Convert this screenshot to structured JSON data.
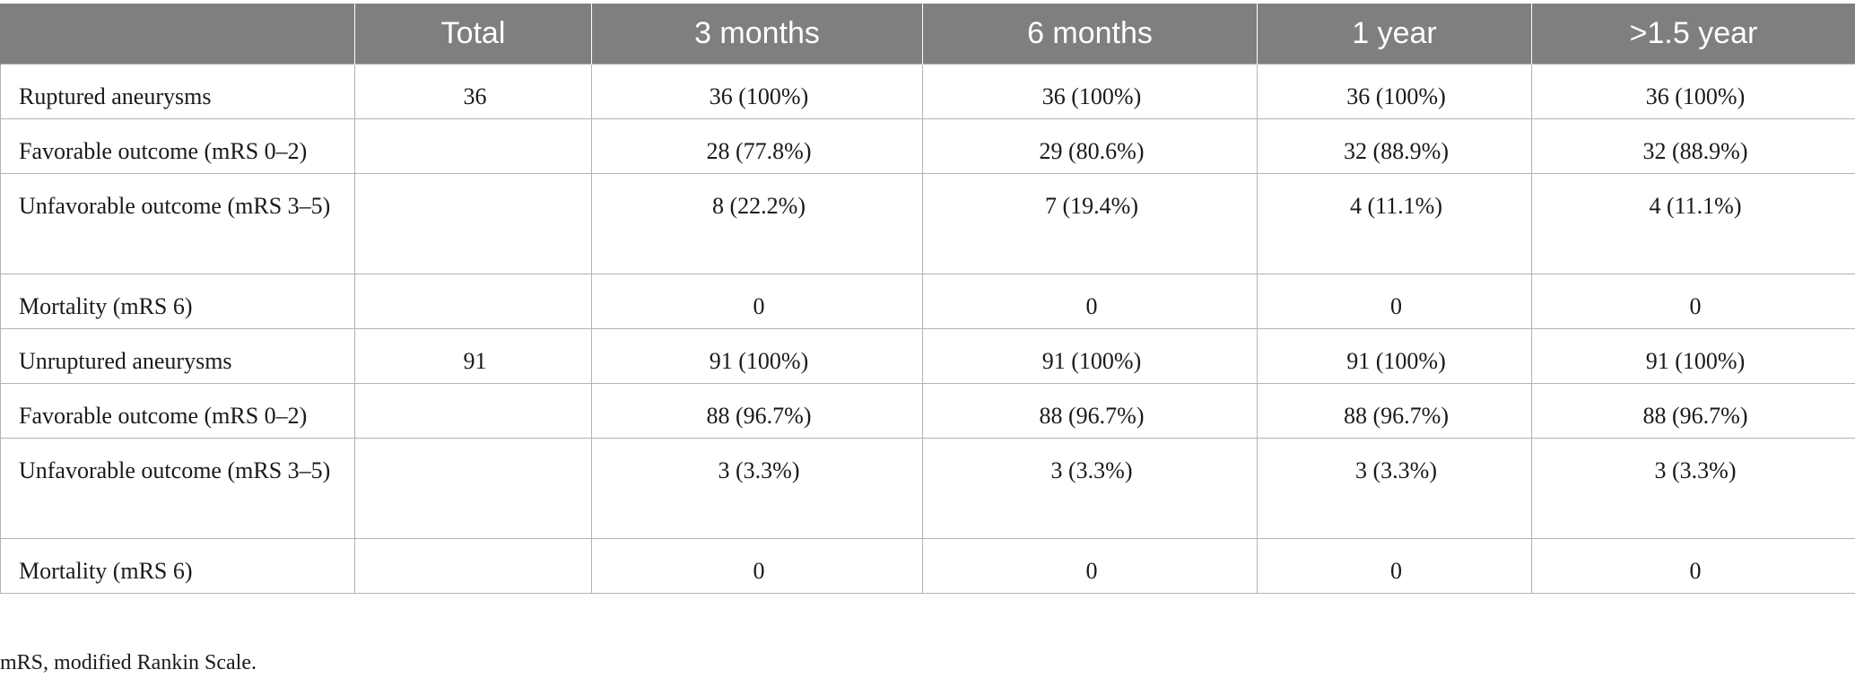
{
  "table": {
    "headers": [
      "",
      "Total",
      "3 months",
      "6 months",
      "1 year",
      ">1.5 year"
    ],
    "rows": [
      {
        "label": "Ruptured aneurysms",
        "total": "36",
        "m3": "36 (100%)",
        "m6": "36 (100%)",
        "y1": "36 (100%)",
        "y15": "36 (100%)"
      },
      {
        "label": "Favorable outcome (mRS 0–2)",
        "total": "",
        "m3": "28 (77.8%)",
        "m6": "29 (80.6%)",
        "y1": "32 (88.9%)",
        "y15": "32 (88.9%)"
      },
      {
        "label": "Unfavorable outcome (mRS 3–5)",
        "total": "",
        "m3": "8 (22.2%)",
        "m6": "7 (19.4%)",
        "y1": "4 (11.1%)",
        "y15": "4 (11.1%)"
      },
      {
        "label": "Mortality (mRS 6)",
        "total": "",
        "m3": "0",
        "m6": "0",
        "y1": "0",
        "y15": "0"
      },
      {
        "label": "Unruptured aneurysms",
        "total": "91",
        "m3": "91 (100%)",
        "m6": "91 (100%)",
        "y1": "91 (100%)",
        "y15": "91 (100%)"
      },
      {
        "label": "Favorable outcome (mRS 0–2)",
        "total": "",
        "m3": "88 (96.7%)",
        "m6": "88 (96.7%)",
        "y1": "88 (96.7%)",
        "y15": "88 (96.7%)"
      },
      {
        "label": "Unfavorable outcome (mRS 3–5)",
        "total": "",
        "m3": "3 (3.3%)",
        "m6": "3 (3.3%)",
        "y1": "3 (3.3%)",
        "y15": "3 (3.3%)"
      },
      {
        "label": "Mortality (mRS 6)",
        "total": "",
        "m3": "0",
        "m6": "0",
        "y1": "0",
        "y15": "0"
      }
    ]
  },
  "footnote": "mRS, modified Rankin Scale."
}
